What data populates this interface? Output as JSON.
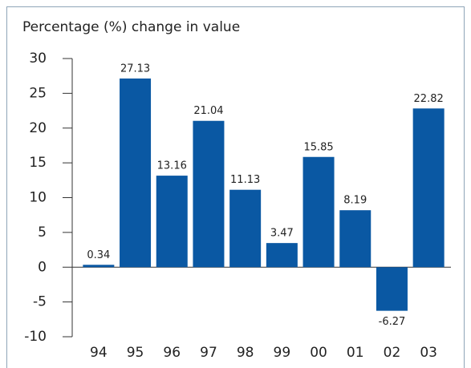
{
  "chart_data": {
    "type": "bar",
    "title": "Percentage (%) change in value",
    "categories": [
      "94",
      "95",
      "96",
      "97",
      "98",
      "99",
      "00",
      "01",
      "02",
      "03"
    ],
    "values": [
      0.34,
      27.13,
      13.16,
      21.04,
      11.13,
      3.47,
      15.85,
      8.19,
      -6.27,
      22.82
    ],
    "color": "#0a58a3",
    "ylim": [
      -10,
      30
    ],
    "yticks": [
      -10,
      -5,
      0,
      5,
      10,
      15,
      20,
      25,
      30
    ],
    "grid": false
  }
}
